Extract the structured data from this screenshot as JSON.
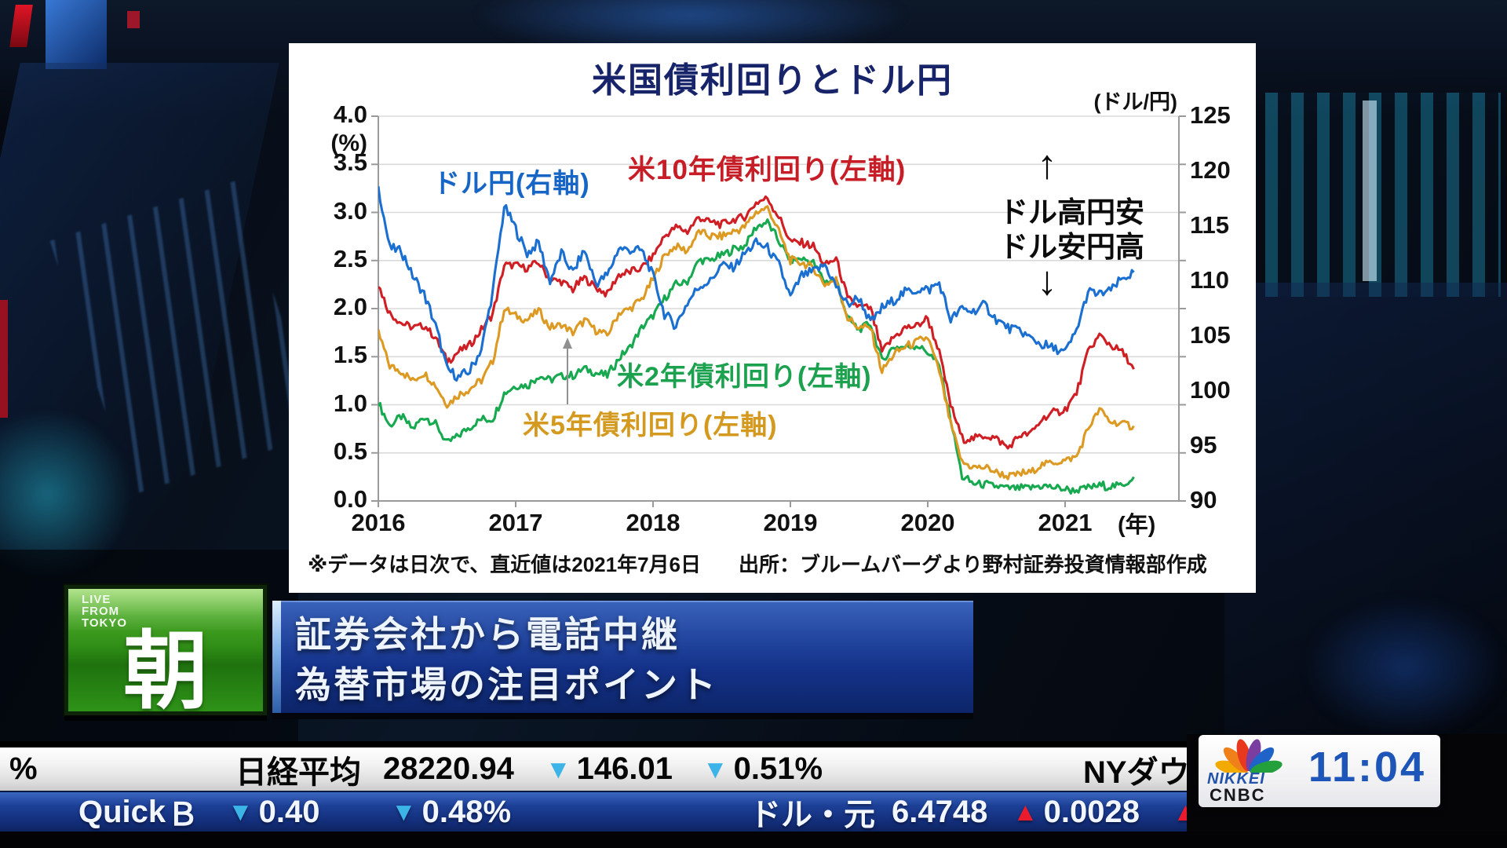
{
  "chart": {
    "title": "米国債利回りとドル円",
    "left_axis_unit": "(%)",
    "right_axis_unit": "(ドル/円)",
    "x_axis_unit": "(年)",
    "left_ticks": [
      "4.0",
      "3.5",
      "3.0",
      "2.5",
      "2.0",
      "1.5",
      "1.0",
      "0.5",
      "0.0"
    ],
    "right_ticks": [
      "125",
      "120",
      "115",
      "110",
      "105",
      "100",
      "95",
      "90"
    ],
    "x_ticks": [
      "2016",
      "2017",
      "2018",
      "2019",
      "2020",
      "2021"
    ],
    "labels": {
      "usdjpy": "ドル円(右軸)",
      "us10y": "米10年債利回り(左軸)",
      "us5y": "米5年債利回り(左軸)",
      "us2y": "米2年債利回り(左軸)"
    },
    "annotation": {
      "up_arrow": "↑",
      "line1": "ドル高円安",
      "line2": "ドル安円高",
      "down_arrow": "↓"
    },
    "footnote_note": "※データは日次で、直近値は2021年7月6日",
    "footnote_source": "出所：ブルームバーグより野村証券投資情報部作成"
  },
  "chart_data": {
    "type": "line",
    "title": "米国債利回りとドル円",
    "x_label": "(年)",
    "y_left_label": "(%)",
    "y_right_label": "(ドル/円)",
    "x_ticks": [
      2016,
      2017,
      2018,
      2019,
      2020,
      2021
    ],
    "y_left_range": [
      0.0,
      4.0
    ],
    "y_left_step": 0.5,
    "y_right_range": [
      90,
      125
    ],
    "y_right_step": 5,
    "grid": true,
    "legend_position": "inline-labels",
    "x_start": 2016.0,
    "x_step_months": 1,
    "x_end": 2021.5,
    "note": "※データは日次で、直近値は2021年7月6日",
    "source": "出所：ブルームバーグより野村証券投資情報部作成",
    "annotations": [
      "ドル高円安",
      "ドル安円高"
    ],
    "series": [
      {
        "name": "米2年債利回り(左軸)",
        "axis": "left",
        "color": "#17a94f",
        "values": [
          1.02,
          0.78,
          0.88,
          0.75,
          0.88,
          0.8,
          0.6,
          0.68,
          0.77,
          0.85,
          0.85,
          1.12,
          1.2,
          1.2,
          1.3,
          1.26,
          1.3,
          1.3,
          1.38,
          1.33,
          1.3,
          1.48,
          1.6,
          1.8,
          1.92,
          2.1,
          2.25,
          2.28,
          2.5,
          2.5,
          2.55,
          2.62,
          2.65,
          2.85,
          2.9,
          2.7,
          2.5,
          2.52,
          2.48,
          2.28,
          2.3,
          1.9,
          1.78,
          1.85,
          1.45,
          1.6,
          1.6,
          1.62,
          1.55,
          1.4,
          0.85,
          0.25,
          0.18,
          0.17,
          0.15,
          0.13,
          0.13,
          0.14,
          0.16,
          0.14,
          0.12,
          0.11,
          0.14,
          0.16,
          0.15,
          0.16,
          0.25
        ]
      },
      {
        "name": "米5年債利回り(左軸)",
        "axis": "left",
        "color": "#dd9a23",
        "values": [
          1.75,
          1.4,
          1.35,
          1.25,
          1.33,
          1.2,
          1.0,
          1.1,
          1.17,
          1.25,
          1.45,
          2.0,
          1.92,
          1.88,
          1.98,
          1.8,
          1.83,
          1.75,
          1.88,
          1.78,
          1.72,
          1.95,
          2.0,
          2.1,
          2.3,
          2.55,
          2.65,
          2.6,
          2.8,
          2.75,
          2.75,
          2.8,
          2.85,
          3.0,
          3.05,
          2.8,
          2.5,
          2.48,
          2.42,
          2.25,
          2.3,
          1.9,
          1.8,
          1.8,
          1.35,
          1.52,
          1.6,
          1.65,
          1.7,
          1.35,
          0.8,
          0.4,
          0.35,
          0.35,
          0.3,
          0.25,
          0.28,
          0.3,
          0.38,
          0.4,
          0.42,
          0.46,
          0.75,
          0.95,
          0.82,
          0.8,
          0.78
        ]
      },
      {
        "name": "米10年債利回り(左軸)",
        "axis": "left",
        "color": "#cf1f24",
        "values": [
          2.25,
          1.95,
          1.85,
          1.8,
          1.83,
          1.7,
          1.45,
          1.55,
          1.62,
          1.78,
          1.95,
          2.45,
          2.45,
          2.42,
          2.48,
          2.3,
          2.28,
          2.2,
          2.32,
          2.22,
          2.15,
          2.35,
          2.38,
          2.42,
          2.55,
          2.75,
          2.85,
          2.8,
          2.95,
          2.9,
          2.88,
          2.92,
          2.95,
          3.1,
          3.15,
          2.95,
          2.7,
          2.68,
          2.65,
          2.45,
          2.52,
          2.1,
          2.02,
          2.0,
          1.55,
          1.7,
          1.8,
          1.82,
          1.9,
          1.55,
          1.0,
          0.65,
          0.65,
          0.68,
          0.65,
          0.55,
          0.68,
          0.7,
          0.85,
          0.92,
          0.95,
          1.12,
          1.55,
          1.72,
          1.62,
          1.55,
          1.37
        ]
      },
      {
        "name": "ドル円(右軸)",
        "axis": "right",
        "color": "#1a6fd0",
        "values": [
          118.5,
          113.0,
          112.8,
          110.5,
          108.8,
          106.0,
          102.0,
          101.2,
          101.8,
          103.8,
          109.0,
          116.8,
          114.8,
          112.5,
          113.5,
          110.0,
          112.5,
          110.8,
          112.8,
          109.8,
          110.5,
          113.0,
          112.8,
          112.8,
          110.5,
          107.0,
          106.0,
          108.0,
          109.5,
          110.0,
          111.5,
          111.2,
          112.5,
          113.5,
          113.0,
          111.5,
          108.5,
          110.5,
          110.8,
          111.5,
          109.5,
          107.8,
          108.5,
          106.2,
          107.5,
          108.2,
          109.0,
          109.2,
          109.2,
          109.8,
          106.5,
          107.5,
          107.2,
          107.8,
          106.5,
          105.8,
          105.5,
          104.8,
          104.2,
          103.8,
          103.5,
          105.5,
          109.0,
          108.8,
          109.2,
          110.2,
          110.8
        ]
      }
    ]
  },
  "lower_third": {
    "live_line1": "LIVE",
    "live_line2": "FROM",
    "live_line3": "TOKYO",
    "program_kanji": "朝",
    "headline_line1": "証券会社から電話中継",
    "headline_line2": "為替市場の注目ポイント"
  },
  "ticker": {
    "row1": [
      {
        "text": "%"
      },
      {
        "text": "日経平均"
      },
      {
        "text": "28220.94"
      },
      {
        "text": "146.01",
        "marker": "down"
      },
      {
        "text": "0.51%",
        "marker": "down"
      },
      {
        "text": "NYダウミ"
      }
    ],
    "row2": [
      {
        "text": "Quick"
      },
      {
        "text": "Ｂ"
      },
      {
        "text": "0.40",
        "marker": "down"
      },
      {
        "text": "0.48%",
        "marker": "down"
      },
      {
        "text": "ドル・元"
      },
      {
        "text": "6.4748"
      },
      {
        "text": "0.0028",
        "marker": "up"
      },
      {
        "text": "",
        "marker": "up"
      }
    ]
  },
  "branding": {
    "network_line1": "NIKKEI",
    "network_line2": "CNBC",
    "clock": "11:04"
  },
  "colors": {
    "usdjpy": "#1a6fd0",
    "us10y": "#cf1f24",
    "us5y": "#dd9a23",
    "us2y": "#17a94f",
    "tri_down": "#3cb4e8",
    "tri_up": "#e81c2c"
  }
}
